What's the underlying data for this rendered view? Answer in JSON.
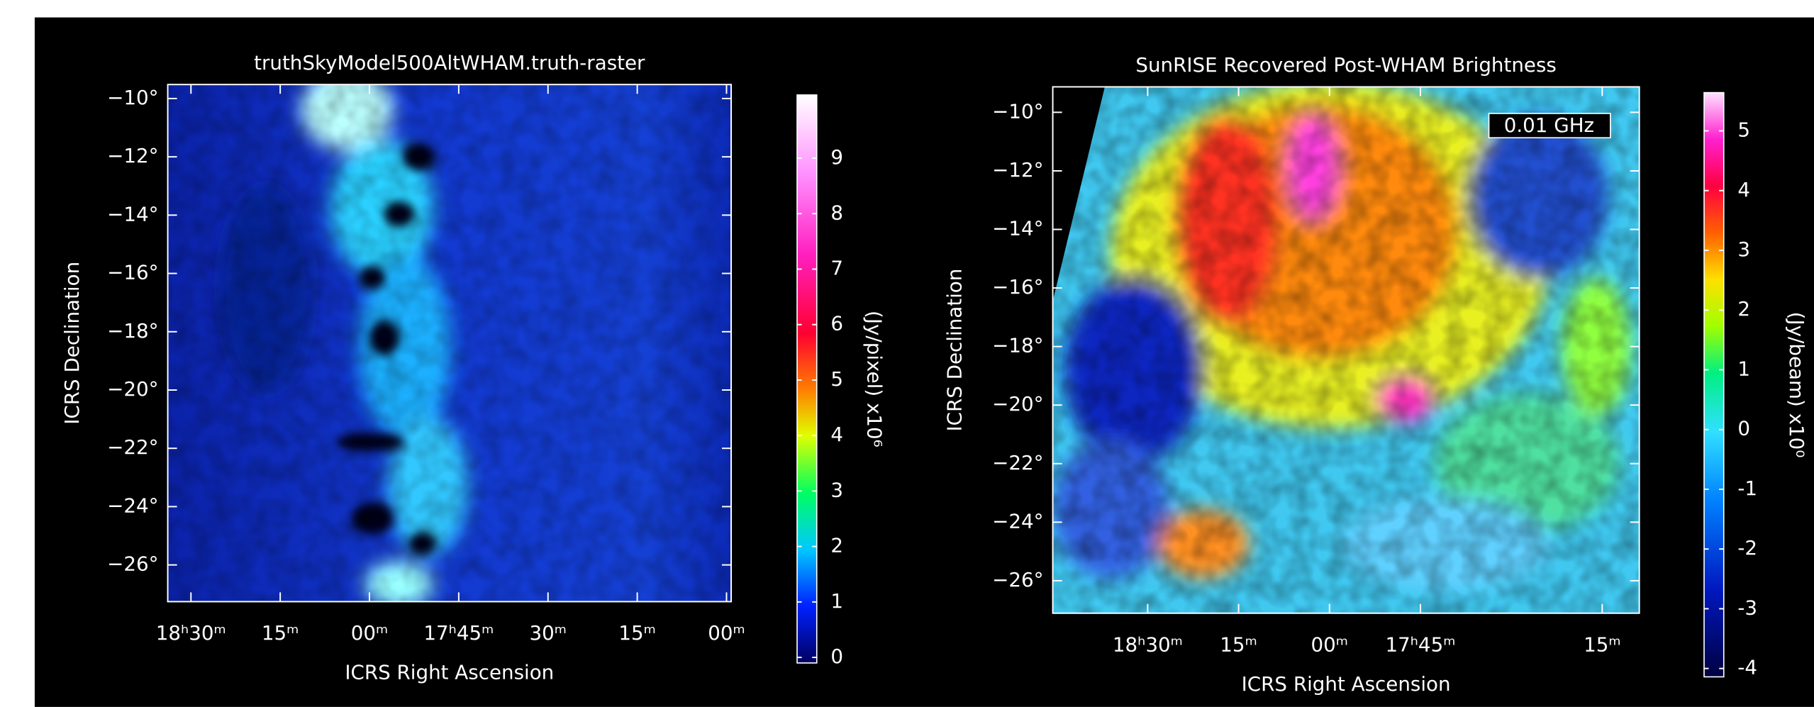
{
  "chart_data": [
    {
      "type": "image",
      "title": "truthSkyModel500AltWHAM.truth-raster",
      "xlabel": "ICRS Right Ascension",
      "ylabel": "ICRS Declination",
      "xlim": [
        18.565,
        16.987
      ],
      "ylim": [
        -27.26,
        -9.52
      ],
      "xticks": [
        {
          "value": 18.5,
          "label": "18ʰ30ᵐ"
        },
        {
          "value": 18.25,
          "label": "15ᵐ"
        },
        {
          "value": 18.0,
          "label": "00ᵐ"
        },
        {
          "value": 17.75,
          "label": "17ʰ45ᵐ"
        },
        {
          "value": 17.5,
          "label": "30ᵐ"
        },
        {
          "value": 17.25,
          "label": "15ᵐ"
        },
        {
          "value": 17.0,
          "label": "00ᵐ"
        }
      ],
      "yticks": [
        {
          "value": -10,
          "label": "−10°"
        },
        {
          "value": -12,
          "label": "−12°"
        },
        {
          "value": -14,
          "label": "−14°"
        },
        {
          "value": -16,
          "label": "−16°"
        },
        {
          "value": -18,
          "label": "−18°"
        },
        {
          "value": -20,
          "label": "−20°"
        },
        {
          "value": -22,
          "label": "−22°"
        },
        {
          "value": -24,
          "label": "−24°"
        },
        {
          "value": -26,
          "label": "−26°"
        }
      ],
      "colorbar": {
        "label": "(Jy/pixel) x10⁶",
        "clim": [
          -0.1,
          10.14
        ],
        "ticks": [
          0,
          1,
          2,
          3,
          4,
          5,
          6,
          7,
          8,
          9
        ]
      }
    },
    {
      "type": "image",
      "title": "SunRISE Recovered Post-WHAM Brightness",
      "annotation": "0.01 GHz",
      "xlabel": "ICRS Right Ascension",
      "ylabel": "ICRS Declination",
      "xlim": [
        18.761,
        17.148
      ],
      "ylim": [
        -27.11,
        -9.13
      ],
      "xticks": [
        {
          "value": 18.5,
          "label": "18ʰ30ᵐ"
        },
        {
          "value": 18.25,
          "label": "15ᵐ"
        },
        {
          "value": 18.0,
          "label": "00ᵐ"
        },
        {
          "value": 17.75,
          "label": "17ʰ45ᵐ"
        },
        {
          "value": 17.25,
          "label": "15ᵐ"
        }
      ],
      "yticks": [
        {
          "value": -10,
          "label": "−10°"
        },
        {
          "value": -12,
          "label": "−12°"
        },
        {
          "value": -14,
          "label": "−14°"
        },
        {
          "value": -16,
          "label": "−16°"
        },
        {
          "value": -18,
          "label": "−18°"
        },
        {
          "value": -20,
          "label": "−20°"
        },
        {
          "value": -22,
          "label": "−22°"
        },
        {
          "value": -24,
          "label": "−24°"
        },
        {
          "value": -26,
          "label": "−26°"
        }
      ],
      "colorbar": {
        "label": "(Jy/beam) x10⁰",
        "clim": [
          -4.14,
          5.64
        ],
        "ticks": [
          -4,
          -3,
          -2,
          -1,
          0,
          1,
          2,
          3,
          4,
          5
        ]
      }
    }
  ]
}
